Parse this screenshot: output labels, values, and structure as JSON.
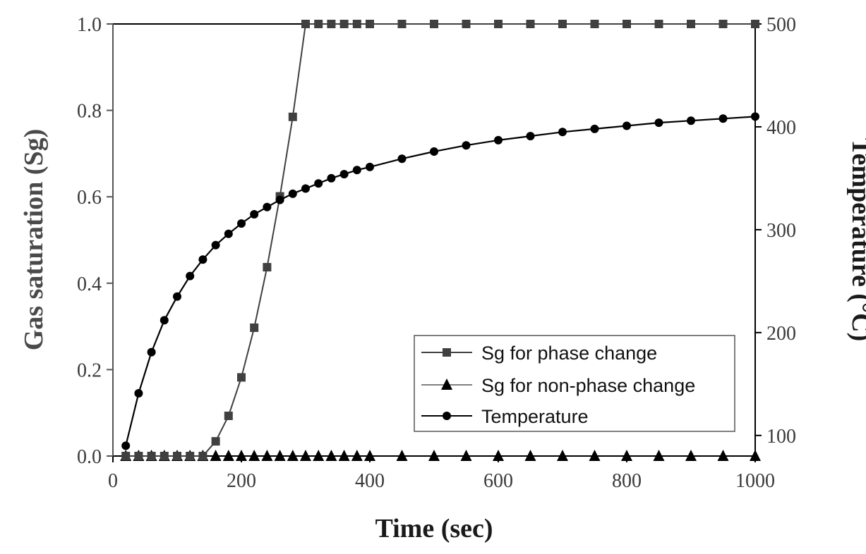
{
  "chart_data": {
    "type": "line",
    "xlabel": "Time (sec)",
    "ylabel": "Gas saturation (Sg)",
    "y2label": "Temperature (°C)",
    "xlim": [
      0,
      1000
    ],
    "ylim": [
      0,
      1.0
    ],
    "y2lim": [
      80,
      500
    ],
    "x_ticks": [
      "0",
      "200",
      "400",
      "600",
      "800",
      "1000"
    ],
    "y_ticks": [
      "0.0",
      "0.2",
      "0.4",
      "0.6",
      "0.8",
      "1.0"
    ],
    "y2_ticks": [
      "100",
      "200",
      "300",
      "400",
      "500"
    ],
    "y2_tick_values": [
      100,
      200,
      300,
      400,
      500
    ],
    "grid": false,
    "legend_position": "bottom-right",
    "series": [
      {
        "name": "Sg for phase change",
        "axis": "left",
        "marker": "square",
        "color": "#404040",
        "x": [
          20,
          40,
          60,
          80,
          100,
          120,
          140,
          160,
          180,
          200,
          220,
          240,
          260,
          280,
          300,
          320,
          340,
          360,
          380,
          400,
          450,
          500,
          550,
          600,
          650,
          700,
          750,
          800,
          850,
          900,
          950,
          1000
        ],
        "y": [
          0,
          0,
          0,
          0,
          0,
          0,
          0,
          0.034,
          0.093,
          0.182,
          0.297,
          0.437,
          0.601,
          0.785,
          1.0,
          1.0,
          1.0,
          1.0,
          1.0,
          1.0,
          1.0,
          1.0,
          1.0,
          1.0,
          1.0,
          1.0,
          1.0,
          1.0,
          1.0,
          1.0,
          1.0,
          1.0
        ]
      },
      {
        "name": "Sg for non-phase change",
        "axis": "left",
        "marker": "triangle",
        "color": "#000000",
        "x": [
          20,
          40,
          60,
          80,
          100,
          120,
          140,
          160,
          180,
          200,
          220,
          240,
          260,
          280,
          300,
          320,
          340,
          360,
          380,
          400,
          450,
          500,
          550,
          600,
          650,
          700,
          750,
          800,
          850,
          900,
          950,
          1000
        ],
        "y": [
          0,
          0,
          0,
          0,
          0,
          0,
          0,
          0,
          0,
          0,
          0,
          0,
          0,
          0,
          0,
          0,
          0,
          0,
          0,
          0,
          0,
          0,
          0,
          0,
          0,
          0,
          0,
          0,
          0,
          0,
          0,
          0
        ]
      },
      {
        "name": "Temperature",
        "axis": "right",
        "marker": "circle",
        "color": "#000000",
        "x": [
          20,
          40,
          60,
          80,
          100,
          120,
          140,
          160,
          180,
          200,
          220,
          240,
          260,
          280,
          300,
          320,
          340,
          360,
          380,
          400,
          450,
          500,
          550,
          600,
          650,
          700,
          750,
          800,
          850,
          900,
          950,
          1000
        ],
        "y": [
          90,
          141,
          181,
          212,
          235,
          255,
          271,
          285,
          296,
          306,
          315,
          322,
          329,
          335,
          340,
          345,
          350,
          354,
          358,
          361,
          369,
          376,
          382,
          387,
          391,
          395,
          398,
          401,
          404,
          406,
          408,
          410
        ]
      }
    ]
  }
}
